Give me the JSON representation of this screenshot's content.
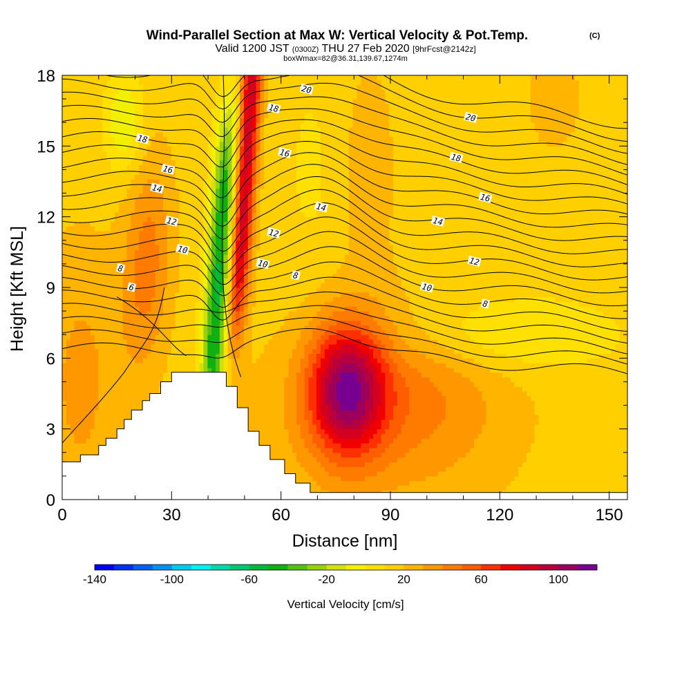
{
  "chart_data": {
    "type": "heatmap",
    "title_main": "Wind-Parallel Section at Max W: Vertical Velocity & Pot.Temp.",
    "title_mark": "(C)",
    "subtitle_a": "Valid 1200 JST",
    "subtitle_b": "(0300Z)",
    "subtitle_c": "THU 27 Feb 2020",
    "subtitle_d": "[9hrFcst@2142z]",
    "subtitle_e": "boxWmax=82@36.31,139.67,1274m",
    "xlabel": "Distance [nm]",
    "ylabel": "Height [Kft MSL]",
    "xlim": [
      0,
      155
    ],
    "ylim": [
      0,
      18
    ],
    "x_ticks": [
      0,
      30,
      60,
      90,
      120,
      150
    ],
    "y_ticks": [
      0,
      3,
      6,
      9,
      12,
      15,
      18
    ],
    "colorbar": {
      "label": "Vertical Velocity [cm/s]",
      "min": -140,
      "max": 100,
      "step": 10,
      "tick_values": [
        -140,
        -100,
        -60,
        -20,
        20,
        60,
        100
      ],
      "colors": [
        "#0000f0",
        "#0030f0",
        "#0060f0",
        "#0090f0",
        "#00c8f0",
        "#00f0f0",
        "#00d8a8",
        "#00c870",
        "#00b840",
        "#10b010",
        "#58c010",
        "#98d010",
        "#d0e010",
        "#f0f000",
        "#ffe000",
        "#ffd000",
        "#ffb400",
        "#ff9800",
        "#ff7c00",
        "#ff5e00",
        "#ff3000",
        "#f00000",
        "#d40020",
        "#b8003c",
        "#9c005a",
        "#780090"
      ]
    },
    "terrain_profile": [
      [
        0,
        1.6
      ],
      [
        5,
        1.6
      ],
      [
        5,
        1.9
      ],
      [
        10,
        1.9
      ],
      [
        10,
        2.3
      ],
      [
        12,
        2.3
      ],
      [
        12,
        2.6
      ],
      [
        15,
        2.6
      ],
      [
        15,
        3.0
      ],
      [
        17,
        3.0
      ],
      [
        17,
        3.4
      ],
      [
        19,
        3.4
      ],
      [
        19,
        3.8
      ],
      [
        22,
        3.8
      ],
      [
        22,
        4.2
      ],
      [
        24,
        4.2
      ],
      [
        24,
        4.5
      ],
      [
        27,
        4.5
      ],
      [
        27,
        5.0
      ],
      [
        30,
        5.0
      ],
      [
        30,
        5.4
      ],
      [
        45,
        5.4
      ],
      [
        45,
        4.8
      ],
      [
        48,
        4.8
      ],
      [
        48,
        3.9
      ],
      [
        51,
        3.9
      ],
      [
        51,
        2.9
      ],
      [
        54,
        2.9
      ],
      [
        54,
        2.3
      ],
      [
        57,
        2.3
      ],
      [
        57,
        1.7
      ],
      [
        61,
        1.7
      ],
      [
        61,
        1.1
      ],
      [
        64,
        1.1
      ],
      [
        64,
        0.7
      ],
      [
        68,
        0.7
      ],
      [
        68,
        0.3
      ],
      [
        72,
        0.3
      ],
      [
        155,
        0.3
      ]
    ],
    "isentrope_labels": [
      {
        "text": "20",
        "x": 67,
        "y": 17.4
      },
      {
        "text": "18",
        "x": 58,
        "y": 16.6
      },
      {
        "text": "16",
        "x": 61,
        "y": 14.7
      },
      {
        "text": "14",
        "x": 71,
        "y": 12.4
      },
      {
        "text": "12",
        "x": 58,
        "y": 11.3
      },
      {
        "text": "10",
        "x": 55,
        "y": 10.0
      },
      {
        "text": "8",
        "x": 64,
        "y": 9.5
      },
      {
        "text": "20",
        "x": 112,
        "y": 16.2
      },
      {
        "text": "18",
        "x": 108,
        "y": 14.5
      },
      {
        "text": "16",
        "x": 116,
        "y": 12.8
      },
      {
        "text": "14",
        "x": 103,
        "y": 11.8
      },
      {
        "text": "12",
        "x": 113,
        "y": 10.1
      },
      {
        "text": "10",
        "x": 100,
        "y": 9.0
      },
      {
        "text": "8",
        "x": 116,
        "y": 8.3
      },
      {
        "text": "18",
        "x": 22,
        "y": 15.3
      },
      {
        "text": "16",
        "x": 29,
        "y": 14.0
      },
      {
        "text": "14",
        "x": 26,
        "y": 13.2
      },
      {
        "text": "12",
        "x": 30,
        "y": 11.8
      },
      {
        "text": "10",
        "x": 33,
        "y": 10.6
      },
      {
        "text": "8",
        "x": 16,
        "y": 9.8
      },
      {
        "text": "6",
        "x": 19,
        "y": 9.0
      }
    ]
  }
}
